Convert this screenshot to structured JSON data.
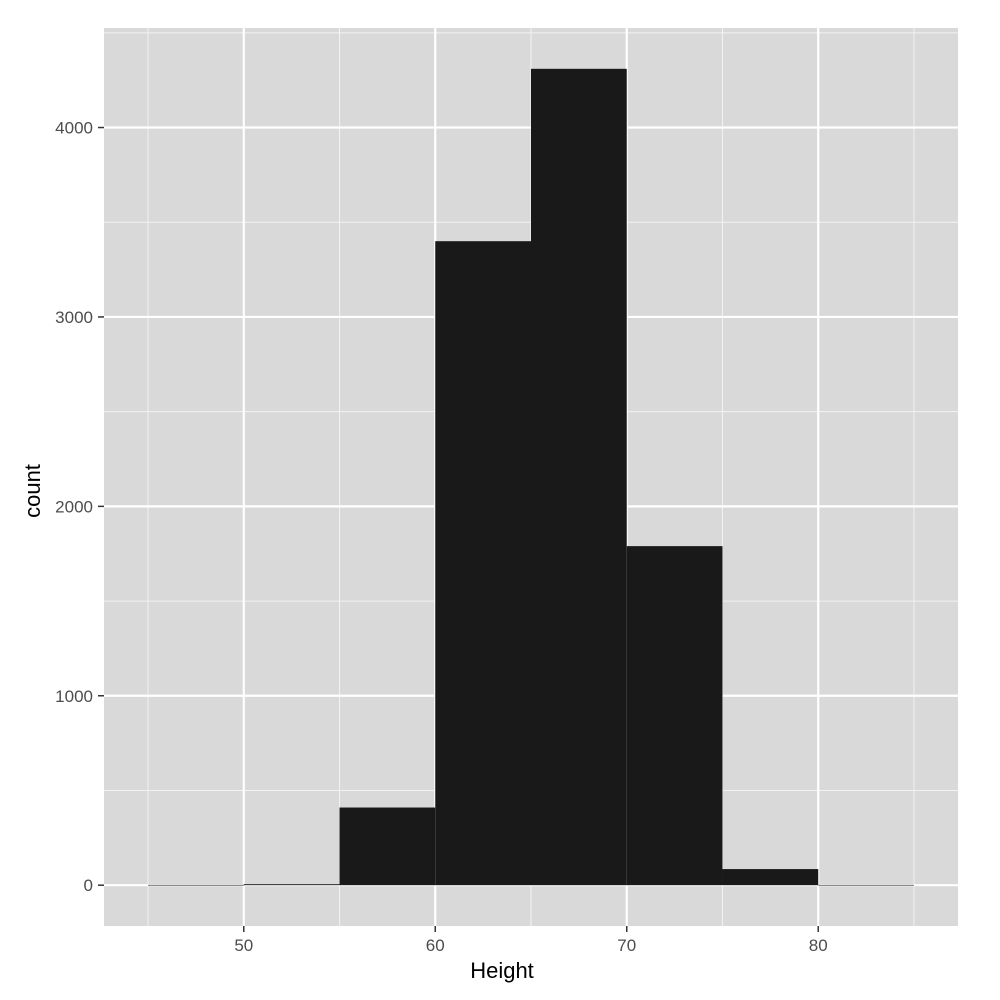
{
  "chart_data": {
    "type": "bar",
    "subtype": "histogram",
    "title": "",
    "xlabel": "Height",
    "ylabel": "count",
    "bin_width": 5,
    "bins": [
      {
        "x_start": 45,
        "x_end": 50,
        "count": 0
      },
      {
        "x_start": 50,
        "x_end": 55,
        "count": 5
      },
      {
        "x_start": 55,
        "x_end": 60,
        "count": 410
      },
      {
        "x_start": 60,
        "x_end": 65,
        "count": 3400
      },
      {
        "x_start": 65,
        "x_end": 70,
        "count": 4310
      },
      {
        "x_start": 70,
        "x_end": 75,
        "count": 1790
      },
      {
        "x_start": 75,
        "x_end": 80,
        "count": 85
      },
      {
        "x_start": 80,
        "x_end": 85,
        "count": 0
      }
    ],
    "xlim": [
      42.7,
      87.3
    ],
    "ylim": [
      -215.5,
      4525.5
    ],
    "x_ticks": [
      50,
      60,
      70,
      80
    ],
    "x_tick_labels": [
      "50",
      "60",
      "70",
      "80"
    ],
    "y_ticks": [
      0,
      1000,
      2000,
      3000,
      4000
    ],
    "y_tick_labels": [
      "0",
      "1000",
      "2000",
      "3000",
      "4000"
    ],
    "x_minor": [
      45,
      55,
      65,
      75,
      85
    ],
    "y_minor": [
      500,
      1500,
      2500,
      3500,
      4500
    ],
    "grid": true,
    "legend": "none",
    "bar_color": "#191919",
    "panel_color": "#d9d9d9",
    "grid_color": "#ffffff"
  }
}
